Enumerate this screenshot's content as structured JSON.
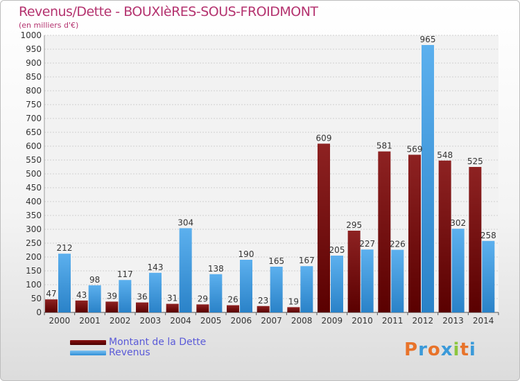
{
  "chart_data": {
    "type": "bar",
    "title": "Revenus/Dette - BOUXIèRES-SOUS-FROIDMONT",
    "subtitle": "(en milliers d'€)",
    "categories": [
      "2000",
      "2001",
      "2002",
      "2003",
      "2004",
      "2005",
      "2006",
      "2007",
      "2008",
      "2009",
      "2010",
      "2011",
      "2012",
      "2013",
      "2014"
    ],
    "series": [
      {
        "name": "Montant de la Dette",
        "color": "#7a1515",
        "values": [
          47,
          43,
          39,
          36,
          31,
          29,
          26,
          23,
          19,
          609,
          295,
          581,
          569,
          548,
          525
        ]
      },
      {
        "name": "Revenus",
        "color": "#3d9be0",
        "values": [
          212,
          98,
          117,
          143,
          304,
          138,
          190,
          165,
          167,
          205,
          227,
          226,
          965,
          302,
          258
        ]
      }
    ],
    "ylim": [
      0,
      1000
    ],
    "yticks": [
      0,
      50,
      100,
      150,
      200,
      250,
      300,
      350,
      400,
      450,
      500,
      550,
      600,
      650,
      700,
      750,
      800,
      850,
      900,
      950,
      1000
    ],
    "grid": true,
    "legend_position": "bottom-left"
  },
  "logo": {
    "text": "Proxiti",
    "letters": [
      "P",
      "r",
      "o",
      "x",
      "i",
      "t",
      "i"
    ],
    "colors": [
      "#e8732a",
      "#3b9ad9",
      "#e8732a",
      "#3b9ad9",
      "#8cc63f",
      "#e8732a",
      "#3b9ad9"
    ]
  }
}
